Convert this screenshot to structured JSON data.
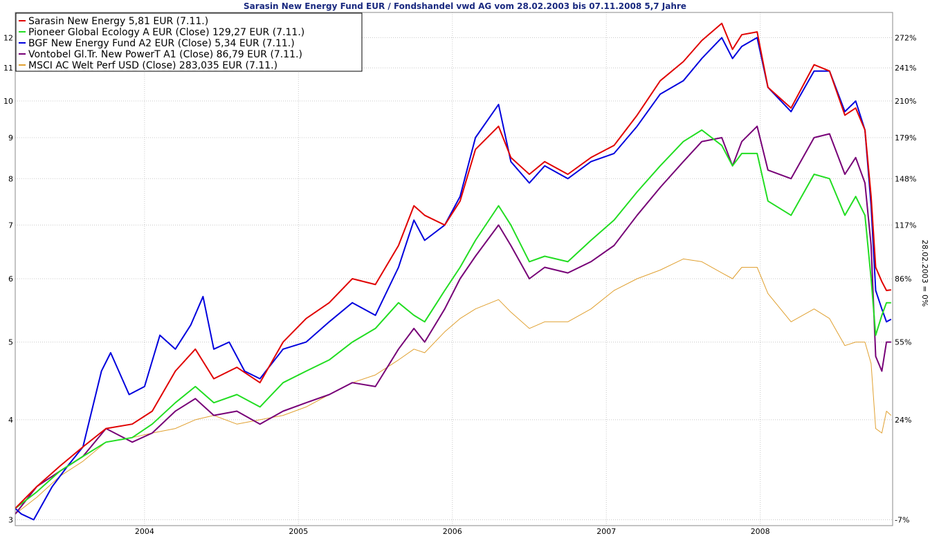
{
  "chart_data": {
    "type": "line",
    "title": "Sarasin New Energy Fund EUR / Fondshandel vwd AG vom 28.02.2003 bis 07.11.2008 5,7 Jahre",
    "right_axis_note": "28.02.2003 = 0%",
    "y_scale": "log",
    "ylim": [
      2.95,
      12.9
    ],
    "xlim": [
      2003.16,
      2008.86
    ],
    "grid": "on",
    "legend_position": "top-left",
    "x_ticks": [
      "2004",
      "2005",
      "2006",
      "2007",
      "2008"
    ],
    "y_ticks_left": [
      "3",
      "4",
      "5",
      "6",
      "7",
      "8",
      "9",
      "10",
      "11",
      "12"
    ],
    "y_ticks_right": [
      "-7%",
      "24%",
      "55%",
      "86%",
      "117%",
      "148%",
      "179%",
      "210%",
      "241%",
      "272%"
    ],
    "series": [
      {
        "name": "Sarasin New Energy 5,81 EUR (7.11.)",
        "color": "#e00000",
        "x": [
          2003.16,
          2003.3,
          2003.45,
          2003.6,
          2003.75,
          2003.92,
          2004.05,
          2004.2,
          2004.33,
          2004.45,
          2004.6,
          2004.75,
          2004.9,
          2005.05,
          2005.2,
          2005.35,
          2005.5,
          2005.65,
          2005.75,
          2005.82,
          2005.95,
          2006.05,
          2006.15,
          2006.3,
          2006.38,
          2006.5,
          2006.6,
          2006.75,
          2006.9,
          2007.05,
          2007.2,
          2007.35,
          2007.5,
          2007.62,
          2007.75,
          2007.82,
          2007.88,
          2007.98,
          2008.05,
          2008.2,
          2008.35,
          2008.45,
          2008.55,
          2008.62,
          2008.68,
          2008.72,
          2008.75,
          2008.79,
          2008.82,
          2008.85
        ],
        "values": [
          3.1,
          3.3,
          3.5,
          3.7,
          3.9,
          3.95,
          4.1,
          4.6,
          4.9,
          4.5,
          4.65,
          4.45,
          5.0,
          5.35,
          5.6,
          6.0,
          5.9,
          6.6,
          7.4,
          7.2,
          7.0,
          7.5,
          8.7,
          9.3,
          8.5,
          8.1,
          8.4,
          8.1,
          8.5,
          8.8,
          9.6,
          10.6,
          11.2,
          11.9,
          12.5,
          11.6,
          12.1,
          12.2,
          10.4,
          9.8,
          11.1,
          10.9,
          9.6,
          9.8,
          9.2,
          7.6,
          6.2,
          5.95,
          5.8,
          5.81
        ]
      },
      {
        "name": "Pioneer Global Ecology A EUR (Close) 129,27 EUR (7.11.)",
        "color": "#22dd22",
        "x": [
          2003.16,
          2003.3,
          2003.45,
          2003.6,
          2003.75,
          2003.92,
          2004.05,
          2004.2,
          2004.33,
          2004.45,
          2004.6,
          2004.75,
          2004.9,
          2005.05,
          2005.2,
          2005.35,
          2005.5,
          2005.65,
          2005.75,
          2005.82,
          2005.95,
          2006.05,
          2006.15,
          2006.3,
          2006.38,
          2006.5,
          2006.6,
          2006.75,
          2006.9,
          2007.05,
          2007.2,
          2007.35,
          2007.5,
          2007.62,
          2007.75,
          2007.82,
          2007.88,
          2007.98,
          2008.05,
          2008.2,
          2008.35,
          2008.45,
          2008.55,
          2008.62,
          2008.68,
          2008.72,
          2008.75,
          2008.79,
          2008.82,
          2008.85
        ],
        "values": [
          3.1,
          3.25,
          3.45,
          3.6,
          3.75,
          3.8,
          3.95,
          4.2,
          4.4,
          4.2,
          4.3,
          4.15,
          4.45,
          4.6,
          4.75,
          5.0,
          5.2,
          5.6,
          5.4,
          5.3,
          5.8,
          6.2,
          6.7,
          7.4,
          7.0,
          6.3,
          6.4,
          6.3,
          6.7,
          7.1,
          7.7,
          8.3,
          8.9,
          9.2,
          8.8,
          8.3,
          8.6,
          8.6,
          7.5,
          7.2,
          8.1,
          8.0,
          7.2,
          7.6,
          7.2,
          6.0,
          5.1,
          5.4,
          5.6,
          5.6
        ]
      },
      {
        "name": "BGF New Energy Fund A2 EUR (Close) 5,34 EUR (7.11.)",
        "color": "#0000dd",
        "x": [
          2003.16,
          2003.2,
          2003.28,
          2003.4,
          2003.5,
          2003.6,
          2003.72,
          2003.78,
          2003.9,
          2004.0,
          2004.1,
          2004.2,
          2004.3,
          2004.38,
          2004.45,
          2004.55,
          2004.65,
          2004.75,
          2004.9,
          2005.05,
          2005.2,
          2005.35,
          2005.5,
          2005.65,
          2005.75,
          2005.82,
          2005.95,
          2006.05,
          2006.15,
          2006.3,
          2006.38,
          2006.5,
          2006.6,
          2006.75,
          2006.9,
          2007.05,
          2007.2,
          2007.35,
          2007.5,
          2007.62,
          2007.75,
          2007.82,
          2007.88,
          2007.98,
          2008.05,
          2008.2,
          2008.35,
          2008.45,
          2008.55,
          2008.62,
          2008.68,
          2008.72,
          2008.75,
          2008.79,
          2008.82,
          2008.85
        ],
        "values": [
          3.1,
          3.05,
          3.0,
          3.3,
          3.5,
          3.7,
          4.6,
          4.85,
          4.3,
          4.4,
          5.1,
          4.9,
          5.25,
          5.7,
          4.9,
          5.0,
          4.6,
          4.5,
          4.9,
          5.0,
          5.3,
          5.6,
          5.4,
          6.2,
          7.1,
          6.7,
          7.0,
          7.6,
          9.0,
          9.9,
          8.4,
          7.9,
          8.3,
          8.0,
          8.4,
          8.6,
          9.3,
          10.2,
          10.6,
          11.3,
          12.0,
          11.3,
          11.7,
          12.0,
          10.4,
          9.7,
          10.9,
          10.9,
          9.7,
          10.0,
          9.2,
          7.4,
          5.8,
          5.5,
          5.3,
          5.34
        ]
      },
      {
        "name": "Vontobel Gl.Tr. New PowerT A1 (Close) 86,79 EUR (7.11.)",
        "color": "#770077",
        "x": [
          2003.16,
          2003.3,
          2003.45,
          2003.6,
          2003.75,
          2003.92,
          2004.05,
          2004.2,
          2004.33,
          2004.45,
          2004.6,
          2004.75,
          2004.9,
          2005.05,
          2005.2,
          2005.35,
          2005.5,
          2005.65,
          2005.75,
          2005.82,
          2005.95,
          2006.05,
          2006.15,
          2006.3,
          2006.38,
          2006.5,
          2006.6,
          2006.75,
          2006.9,
          2007.05,
          2007.2,
          2007.35,
          2007.5,
          2007.62,
          2007.75,
          2007.82,
          2007.88,
          2007.98,
          2008.05,
          2008.2,
          2008.35,
          2008.45,
          2008.55,
          2008.62,
          2008.68,
          2008.72,
          2008.75,
          2008.79,
          2008.82,
          2008.85
        ],
        "values": [
          3.05,
          3.3,
          3.45,
          3.6,
          3.9,
          3.75,
          3.85,
          4.1,
          4.25,
          4.05,
          4.1,
          3.95,
          4.1,
          4.2,
          4.3,
          4.45,
          4.4,
          4.9,
          5.2,
          5.0,
          5.5,
          6.0,
          6.4,
          7.0,
          6.6,
          6.0,
          6.2,
          6.1,
          6.3,
          6.6,
          7.2,
          7.8,
          8.4,
          8.9,
          9.0,
          8.3,
          8.9,
          9.3,
          8.2,
          8.0,
          9.0,
          9.1,
          8.1,
          8.5,
          7.9,
          6.6,
          4.8,
          4.6,
          5.0,
          5.0
        ]
      },
      {
        "name": "MSCI AC Welt Perf USD (Close) 283,035 EUR (7.11.)",
        "color": "#e0a030",
        "x": [
          2003.16,
          2003.3,
          2003.45,
          2003.6,
          2003.75,
          2003.92,
          2004.05,
          2004.2,
          2004.33,
          2004.45,
          2004.6,
          2004.75,
          2004.9,
          2005.05,
          2005.2,
          2005.35,
          2005.5,
          2005.65,
          2005.75,
          2005.82,
          2005.95,
          2006.05,
          2006.15,
          2006.3,
          2006.38,
          2006.5,
          2006.6,
          2006.75,
          2006.9,
          2007.05,
          2007.2,
          2007.35,
          2007.5,
          2007.62,
          2007.75,
          2007.82,
          2007.88,
          2007.98,
          2008.05,
          2008.2,
          2008.35,
          2008.45,
          2008.55,
          2008.62,
          2008.68,
          2008.72,
          2008.75,
          2008.79,
          2008.82,
          2008.85
        ],
        "values": [
          3.05,
          3.2,
          3.4,
          3.55,
          3.75,
          3.8,
          3.85,
          3.9,
          4.0,
          4.05,
          3.95,
          4.0,
          4.05,
          4.15,
          4.3,
          4.45,
          4.55,
          4.75,
          4.9,
          4.85,
          5.15,
          5.35,
          5.5,
          5.65,
          5.45,
          5.2,
          5.3,
          5.3,
          5.5,
          5.8,
          6.0,
          6.15,
          6.35,
          6.3,
          6.1,
          6.0,
          6.2,
          6.2,
          5.75,
          5.3,
          5.5,
          5.35,
          4.95,
          5.0,
          5.0,
          4.7,
          3.9,
          3.85,
          4.1,
          4.05
        ]
      }
    ]
  }
}
